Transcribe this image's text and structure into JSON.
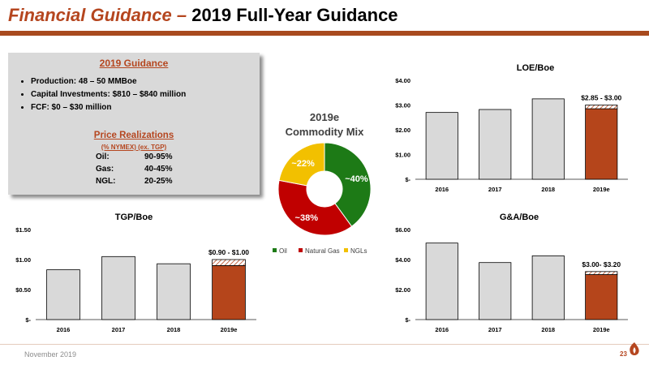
{
  "header": {
    "title_accent": "Financial Guidance –",
    "title_rest": "2019 Full-Year Guidance"
  },
  "guidance": {
    "title": "2019 Guidance",
    "bullets": [
      "Production:   48 – 50 MMBoe",
      "Capital Investments:  $810 – $840 million",
      "FCF: $0 – $30 million"
    ],
    "price_title": "Price Realizations",
    "price_subtitle": "(% NYMEX) (ex. TGP)",
    "price_rows": [
      {
        "label": "Oil:",
        "value": "90-95%"
      },
      {
        "label": "Gas:",
        "value": "40-45%"
      },
      {
        "label": "NGL:",
        "value": "20-25%"
      }
    ]
  },
  "mix": {
    "title_line1": "2019e",
    "title_line2": "Commodity Mix"
  },
  "colors": {
    "accent": "#b5461f",
    "bar_grey": "#d9d9d9",
    "bar_estimate": "#b5451b",
    "oil": "#1d7a16",
    "natural_gas": "#c00000",
    "ngls": "#f2c000"
  },
  "footer": {
    "date": "November 2019",
    "page": "23"
  },
  "chart_data": [
    {
      "id": "loe",
      "type": "bar",
      "title": "LOE/Boe",
      "categories": [
        "2016",
        "2017",
        "2018",
        "2019e"
      ],
      "values": [
        2.7,
        2.82,
        3.25,
        2.85
      ],
      "range_high": [
        null,
        null,
        null,
        3.0
      ],
      "range_label": "$2.85 - $3.00",
      "ylim": [
        0,
        4
      ],
      "yticks": [
        0,
        1,
        2,
        3,
        4
      ],
      "ytick_labels": [
        "$-",
        "$1.00",
        "$2.00",
        "$3.00",
        "$4.00"
      ],
      "grid": false
    },
    {
      "id": "tgp",
      "type": "bar",
      "title": "TGP/Boe",
      "categories": [
        "2016",
        "2017",
        "2018",
        "2019e"
      ],
      "values": [
        0.83,
        1.05,
        0.93,
        0.9
      ],
      "range_high": [
        null,
        null,
        null,
        1.0
      ],
      "range_label": "$0.90 - $1.00",
      "ylim": [
        0,
        1.5
      ],
      "yticks": [
        0,
        0.5,
        1.0,
        1.5
      ],
      "ytick_labels": [
        "$-",
        "$0.50",
        "$1.00",
        "$1.50"
      ],
      "grid": false
    },
    {
      "id": "ga",
      "type": "bar",
      "title": "G&A/Boe",
      "categories": [
        "2016",
        "2017",
        "2018",
        "2019e"
      ],
      "values": [
        5.1,
        3.8,
        4.25,
        3.0
      ],
      "range_high": [
        null,
        null,
        null,
        3.2
      ],
      "range_label": "$3.00- $3.20",
      "ylim": [
        0,
        6
      ],
      "yticks": [
        0,
        2,
        4,
        6
      ],
      "ytick_labels": [
        "$-",
        "$2.00",
        "$4.00",
        "$6.00"
      ],
      "grid": false
    },
    {
      "id": "mix",
      "type": "pie",
      "title": "2019e Commodity Mix",
      "categories": [
        "Oil",
        "Natural Gas",
        "NGLs"
      ],
      "values": [
        40,
        38,
        22
      ],
      "labels": [
        "~40%",
        "~38%",
        "~22%"
      ],
      "colors": [
        "#1d7a16",
        "#c00000",
        "#f2c000"
      ],
      "donut": true,
      "legend": "bottom"
    }
  ]
}
